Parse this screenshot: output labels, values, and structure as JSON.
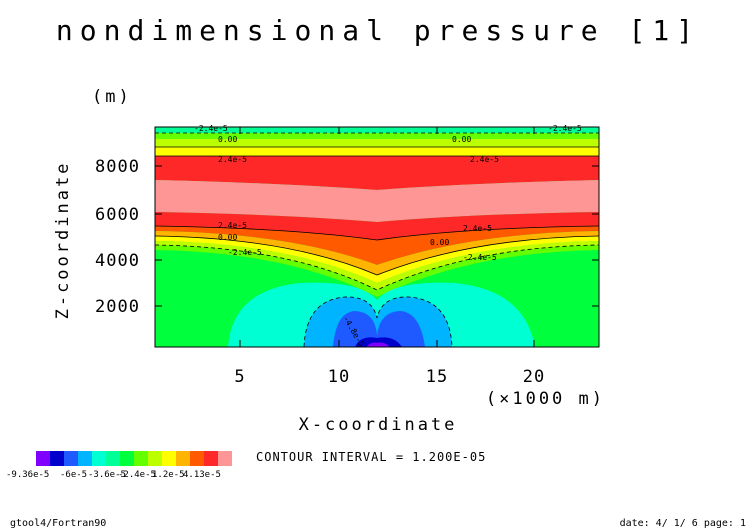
{
  "chart_data": {
    "type": "heatmap",
    "title": "nondimensional pressure [1]",
    "xlabel": "X-coordinate",
    "ylabel": "Z-coordinate",
    "x_unit": "(×1000 m)",
    "y_unit": "(m)",
    "xlim": [
      0,
      23.5
    ],
    "ylim": [
      0,
      10000
    ],
    "x_ticks": [
      5,
      10,
      15,
      20
    ],
    "x_tick_labels": [
      "5",
      "10",
      "15",
      "20"
    ],
    "y_ticks": [
      2000,
      4000,
      6000,
      8000
    ],
    "y_tick_labels": [
      "2000",
      "4000",
      "6000",
      "8000"
    ],
    "contour_interval_text": "CONTOUR INTERVAL = 1.200E-05",
    "colorbar": {
      "colors": [
        "#7f00ff",
        "#0000cd",
        "#1e5aff",
        "#00b4ff",
        "#00ffd2",
        "#00ff96",
        "#00ff3c",
        "#64ff00",
        "#beff00",
        "#ffff00",
        "#ffb400",
        "#ff5a00",
        "#ff2828",
        "#ff9696"
      ],
      "labels": [
        "-9.36e-5",
        "-6e-5",
        "-3.6e-5",
        "-2.4e-5",
        "1.2e-5",
        "4.13e-5"
      ]
    },
    "contour_labels": [
      "2.4e-5",
      "0.00",
      "-2.4e-5",
      "-4.8e-5"
    ],
    "grid": false
  },
  "footer": {
    "left": "gtool4/Fortran90",
    "right": "date: 4/ 1/ 6 page: 1"
  }
}
